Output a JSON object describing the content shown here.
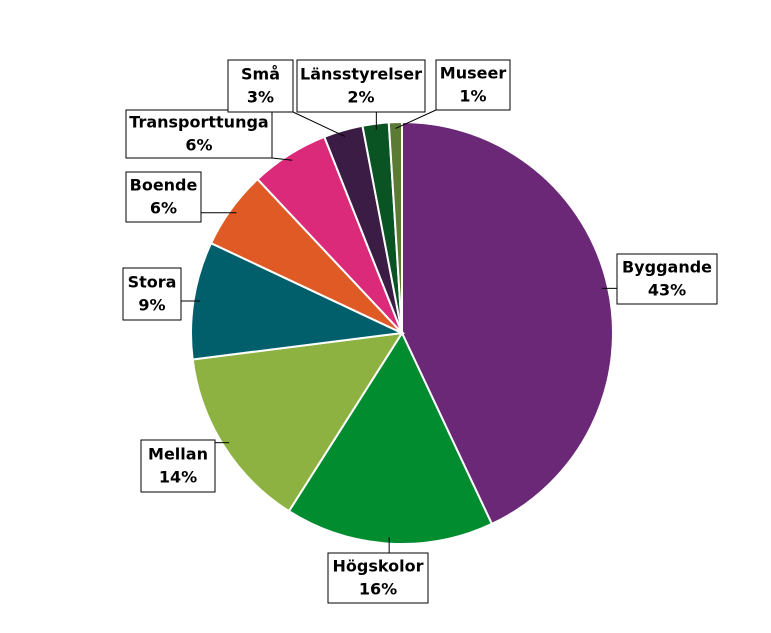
{
  "chart_data": {
    "type": "pie",
    "categories": [
      "Byggande",
      "Högskolor",
      "Mellan",
      "Stora",
      "Boende",
      "Transporttunga",
      "Små",
      "Länsstyrelser",
      "Museer"
    ],
    "values": [
      43,
      16,
      14,
      9,
      6,
      6,
      3,
      2,
      1
    ],
    "value_labels": [
      "43%",
      "16%",
      "14%",
      "9%",
      "6%",
      "6%",
      "3%",
      "2%",
      "1%"
    ],
    "colors": [
      "#6a2877",
      "#008c2f",
      "#8db241",
      "#005f6a",
      "#e05a25",
      "#dc2a7a",
      "#3b1c45",
      "#0a5423",
      "#5b7a34"
    ]
  }
}
